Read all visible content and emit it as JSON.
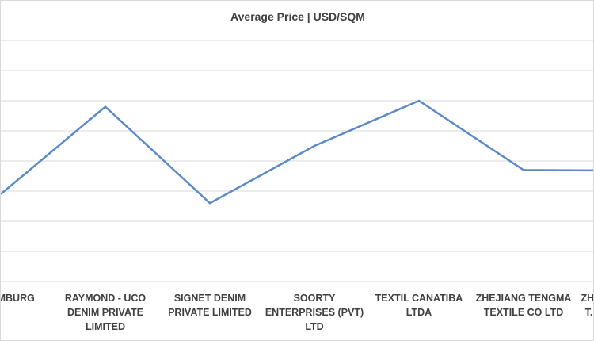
{
  "chart_data": {
    "type": "line",
    "title": "Average Price | USD/SQM",
    "categories": [
      [
        "...MBURG"
      ],
      [
        "RAYMOND - UCO",
        "DENIM PRIVATE",
        "LIMITED"
      ],
      [
        "SIGNET DENIM",
        "PRIVATE LIMITED"
      ],
      [
        "SOORTY",
        "ENTERPRISES (PVT)",
        "LTD"
      ],
      [
        "TEXTIL CANATIBA",
        "LTDA"
      ],
      [
        "ZHEJIANG TENGMA",
        "TEXTILE CO LTD"
      ],
      [
        "ZH...",
        "T..."
      ]
    ],
    "values": [
      2.9,
      5.8,
      2.6,
      4.5,
      6.0,
      3.7,
      3.68
    ],
    "ylim": [
      0,
      8
    ],
    "grid": true,
    "colors": {
      "line": "#5b8ac6",
      "grid": "#d9d9d9",
      "text": "#404040"
    }
  }
}
